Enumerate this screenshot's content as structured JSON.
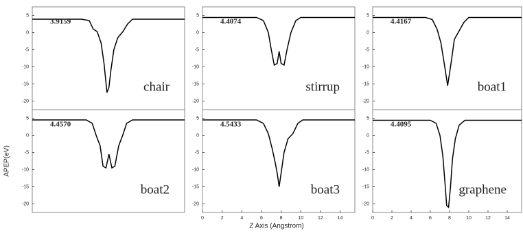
{
  "xlabel": "Z Axis (Angstrom)",
  "ylabel": "APEP(eV)",
  "chart_data": [
    {
      "type": "line",
      "title": "chair",
      "annotation": "3.9159",
      "color": "#000000",
      "x": [
        0,
        5,
        5.8,
        6.2,
        6.6,
        7.0,
        7.3,
        7.6,
        7.8,
        8.0,
        8.3,
        8.7,
        9.2,
        9.7,
        10.2,
        15.5
      ],
      "values": [
        3.9,
        3.9,
        3.5,
        1.0,
        0.3,
        -3,
        -9,
        -17.5,
        -16,
        -11,
        -5,
        -1.5,
        0.2,
        2.5,
        3.9,
        3.9
      ],
      "xlim": [
        0,
        15.5
      ],
      "ylim": [
        -22.5,
        7.5
      ],
      "yticks": [
        5,
        0,
        -5,
        -10,
        -15,
        -20
      ]
    },
    {
      "type": "line",
      "title": "stirrup",
      "annotation": "4.4074",
      "color": "#000000",
      "x": [
        0,
        5.5,
        6.2,
        6.7,
        7.0,
        7.3,
        7.6,
        7.8,
        8.0,
        8.3,
        8.6,
        9.0,
        9.5,
        10,
        15.5
      ],
      "values": [
        4.4,
        4.4,
        3.5,
        0,
        -5,
        -9.5,
        -9,
        -5.5,
        -9,
        -9.5,
        -5,
        0,
        3.5,
        4.4,
        4.4
      ],
      "xlim": [
        0,
        15.5
      ],
      "ylim": [
        -22.5,
        7.5
      ],
      "yticks": [
        5,
        0,
        -5,
        -10,
        -15,
        -20
      ]
    },
    {
      "type": "line",
      "title": "boat1",
      "annotation": "4.4167",
      "color": "#000000",
      "x": [
        0,
        5.5,
        6.2,
        6.7,
        7.1,
        7.5,
        7.8,
        8.1,
        8.5,
        9.0,
        9.5,
        10,
        15.5
      ],
      "values": [
        4.4,
        4.4,
        3.8,
        1,
        -3,
        -10,
        -15.5,
        -10,
        -2,
        0.5,
        3,
        4.4,
        4.4
      ],
      "xlim": [
        0,
        15.5
      ],
      "ylim": [
        -22.5,
        7.5
      ],
      "yticks": [
        5,
        0,
        -5,
        -10,
        -15,
        -20
      ]
    },
    {
      "type": "line",
      "title": "boat2",
      "annotation": "4.4570",
      "color": "#000000",
      "x": [
        0,
        5.5,
        6.1,
        6.5,
        6.9,
        7.2,
        7.5,
        7.8,
        8.1,
        8.4,
        8.8,
        9.2,
        9.6,
        10.2,
        15.5
      ],
      "values": [
        4.5,
        4.5,
        3.5,
        0,
        -3,
        -9,
        -9.5,
        -5.5,
        -9.5,
        -9,
        -3,
        0,
        3.5,
        4.5,
        4.5
      ],
      "xlim": [
        0,
        15.5
      ],
      "ylim": [
        -22.5,
        7.5
      ],
      "yticks": [
        5,
        0,
        -5,
        -10,
        -15,
        -20
      ]
    },
    {
      "type": "line",
      "title": "boat3",
      "annotation": "4.5433",
      "color": "#000000",
      "x": [
        0,
        5.5,
        6.2,
        6.7,
        7.1,
        7.4,
        7.6,
        7.8,
        8.0,
        8.3,
        8.7,
        9.2,
        9.7,
        10.2,
        15.5
      ],
      "values": [
        4.5,
        4.5,
        3.5,
        0.5,
        -4,
        -8,
        -11,
        -15,
        -11,
        -5,
        -1,
        0.5,
        3.5,
        4.5,
        4.5
      ],
      "xlim": [
        0,
        15.5
      ],
      "ylim": [
        -22.5,
        7.5
      ],
      "xticks": [
        0,
        2,
        4,
        6,
        8,
        10,
        12,
        14
      ],
      "yticks": [
        5,
        0,
        -5,
        -10,
        -15,
        -20
      ]
    },
    {
      "type": "line",
      "title": "graphene",
      "annotation": "4.4095",
      "color": "#000000",
      "x": [
        0,
        6,
        6.6,
        7.0,
        7.3,
        7.5,
        7.7,
        7.9,
        8.1,
        8.3,
        8.6,
        9.0,
        9.6,
        15.5
      ],
      "values": [
        4.4,
        4.4,
        3.5,
        0,
        -6,
        -13,
        -20.5,
        -21,
        -15,
        -7,
        -1,
        3,
        4.4,
        4.4
      ],
      "xlim": [
        0,
        15.5
      ],
      "ylim": [
        -22.5,
        7.5
      ],
      "xticks": [
        0,
        2,
        4,
        6,
        8,
        10,
        12,
        14
      ],
      "yticks": [
        5,
        0,
        -5,
        -10,
        -15,
        -20
      ]
    }
  ]
}
